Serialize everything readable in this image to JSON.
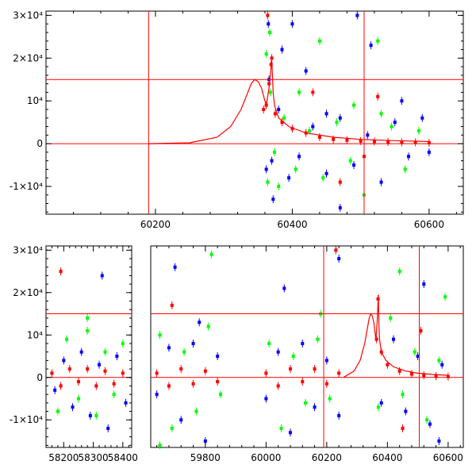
{
  "chart_data": [
    {
      "type": "scatter",
      "title": "",
      "xlabel": "",
      "ylabel": "",
      "xlim": [
        60040,
        60650
      ],
      "ylim": [
        -16500,
        31000
      ],
      "x_ticks": [
        60200,
        60400,
        60600
      ],
      "y_ticks": [
        {
          "value": -10000,
          "label": "-1×10⁴"
        },
        {
          "value": 0,
          "label": "0"
        },
        {
          "value": 10000,
          "label": "10⁴"
        },
        {
          "value": 20000,
          "label": "2×10⁴"
        },
        {
          "value": 30000,
          "label": "3×10⁴"
        }
      ],
      "grid": false,
      "reference_lines": {
        "horizontal": [
          0,
          15000
        ],
        "vertical": [
          60190,
          60505
        ]
      },
      "model_curve": {
        "color": "#ff0000",
        "x": [
          60190,
          60250,
          60290,
          60310,
          60325,
          60335,
          60340,
          60345,
          60350,
          60355,
          60360,
          60362,
          60366,
          60370,
          60372,
          60374,
          60376,
          60380,
          60395,
          60420,
          60460,
          60500,
          60550,
          60600
        ],
        "y": [
          0,
          200,
          1500,
          4000,
          8000,
          12000,
          14000,
          15000,
          14500,
          13000,
          10000,
          9000,
          13000,
          19500,
          12000,
          9000,
          8000,
          6000,
          4000,
          2500,
          1500,
          1000,
          700,
          500
        ]
      },
      "series": [
        {
          "color": "#0000ff",
          "x": [
            60362,
            60366,
            60370,
            60380,
            60395,
            60410,
            60430,
            60450,
            60470,
            60490,
            60510,
            60530,
            60550,
            60570,
            60590,
            60600,
            60365,
            60372,
            60385,
            60420,
            60470,
            60515,
            60560,
            60400,
            60450,
            60495
          ],
          "y": [
            -6000,
            15000,
            -4000,
            8000,
            -8000,
            -3000,
            4000,
            -7000,
            6000,
            -5000,
            2000,
            -9000,
            5000,
            -3000,
            6000,
            -2000,
            28000,
            -13000,
            22000,
            17000,
            -15000,
            23000,
            10000,
            28000,
            7000,
            30000
          ]
        },
        {
          "color": "#00ff00",
          "x": [
            60362,
            60364,
            60368,
            60374,
            60388,
            60405,
            60425,
            60445,
            60465,
            60485,
            60505,
            60525,
            60545,
            60565,
            60585,
            60367,
            60380,
            60410,
            60440,
            60490,
            60530
          ],
          "y": [
            21000,
            -9000,
            12000,
            -2000,
            6000,
            -6000,
            3000,
            -8000,
            5000,
            -4000,
            -12000,
            24000,
            4000,
            -6000,
            3000,
            26000,
            -10000,
            12000,
            24000,
            9000,
            7000
          ]
        },
        {
          "color": "#ff0000",
          "x": [
            60358,
            60362,
            60366,
            60370,
            60375,
            60385,
            60400,
            60420,
            60440,
            60460,
            60480,
            60500,
            60520,
            60540,
            60560,
            60580,
            60600,
            60364,
            60369,
            60430,
            60470,
            60505,
            60525
          ],
          "y": [
            8000,
            9000,
            14000,
            20000,
            7000,
            5000,
            3500,
            2500,
            1500,
            1000,
            800,
            600,
            500,
            400,
            300,
            300,
            200,
            30000,
            18500,
            12000,
            -9000,
            -3000,
            11000
          ]
        }
      ]
    },
    {
      "type": "scatter",
      "title": "",
      "xlabel": "",
      "ylabel": "",
      "ylim": [
        -16500,
        31000
      ],
      "y_ticks": [
        {
          "value": -10000,
          "label": "-1×10⁴"
        },
        {
          "value": 0,
          "label": "0"
        },
        {
          "value": 10000,
          "label": "10⁴"
        },
        {
          "value": 20000,
          "label": "2×10⁴"
        },
        {
          "value": 30000,
          "label": "3×10⁴"
        }
      ],
      "grid": false,
      "broken_x_axis": [
        {
          "xlim": [
            58140,
            58430
          ],
          "x_ticks": [
            58200,
            58300,
            58400
          ]
        },
        {
          "xlim": [
            59620,
            60650
          ],
          "x_ticks": [
            59800,
            60000,
            60200,
            60400,
            60600
          ]
        }
      ],
      "reference_lines": {
        "horizontal": [
          0,
          15000
        ],
        "vertical": [
          60190,
          60505
        ]
      },
      "model_curve": {
        "color": "#ff0000",
        "x": [
          60255,
          60290,
          60310,
          60325,
          60335,
          60340,
          60345,
          60350,
          60355,
          60360,
          60362,
          60366,
          60370,
          60372,
          60374,
          60376,
          60380,
          60395,
          60420,
          60460,
          60500,
          60550,
          60600
        ],
        "y": [
          0,
          1500,
          4000,
          8000,
          12000,
          14000,
          15000,
          14500,
          13000,
          10000,
          9000,
          13000,
          19500,
          12000,
          9000,
          8000,
          6000,
          4000,
          2500,
          1500,
          1000,
          700,
          500
        ]
      },
      "series": [
        {
          "color": "#0000ff",
          "x": [
            58170,
            58200,
            58230,
            58260,
            58290,
            58320,
            58350,
            58380,
            58410,
            59640,
            59680,
            59720,
            59760,
            59800,
            59840,
            60000,
            60040,
            60080,
            60120,
            60160,
            60200,
            60240,
            60380,
            60420,
            60460,
            60500,
            60540,
            60580,
            58330,
            59780,
            59700,
            60060,
            60240,
            60520,
            60570
          ],
          "y": [
            -3000,
            4000,
            -7000,
            6000,
            -9000,
            3000,
            -12000,
            5000,
            -6000,
            -4000,
            7000,
            -10000,
            8000,
            -15000,
            5000,
            -5000,
            6000,
            -13000,
            8000,
            -7000,
            4000,
            -9000,
            -6000,
            9000,
            -8000,
            5000,
            -11000,
            3000,
            24000,
            13000,
            26000,
            21000,
            28000,
            22000,
            -15000
          ]
        },
        {
          "color": "#00ff00",
          "x": [
            58180,
            58210,
            58250,
            58280,
            58310,
            58340,
            58370,
            58400,
            59650,
            59690,
            59730,
            59770,
            59810,
            59850,
            60010,
            60050,
            60090,
            60130,
            60170,
            60210,
            60370,
            60410,
            60450,
            60490,
            60530,
            60570,
            58280,
            59650,
            59820,
            60180,
            60440,
            60590
          ],
          "y": [
            -8000,
            9000,
            -5000,
            11000,
            -9000,
            6000,
            -4000,
            8000,
            10000,
            -12000,
            6000,
            -8000,
            12000,
            -4000,
            8000,
            -12000,
            5000,
            -6000,
            9000,
            -5000,
            -7000,
            14000,
            -4000,
            6000,
            -10000,
            4000,
            14000,
            -16000,
            29000,
            15000,
            25000,
            19000
          ]
        },
        {
          "color": "#ff0000",
          "x": [
            58160,
            58190,
            58220,
            58250,
            58280,
            58310,
            58340,
            58370,
            58400,
            59640,
            59680,
            59720,
            59760,
            59800,
            59840,
            60000,
            60040,
            60080,
            60120,
            60160,
            60200,
            60240,
            60364,
            60369,
            60380,
            60400,
            60440,
            60480,
            60520,
            60560,
            60600,
            58190,
            59690,
            60230,
            60450,
            60510
          ],
          "y": [
            1000,
            -2000,
            2000,
            -1000,
            2000,
            -2000,
            1500,
            -1500,
            1000,
            1000,
            -2000,
            2000,
            -1500,
            1500,
            -1000,
            1000,
            -2000,
            2000,
            -1000,
            2000,
            -1500,
            1000,
            9000,
            18500,
            6000,
            3000,
            1500,
            800,
            500,
            300,
            200,
            25000,
            17000,
            30000,
            -12000,
            11000
          ]
        }
      ]
    }
  ]
}
